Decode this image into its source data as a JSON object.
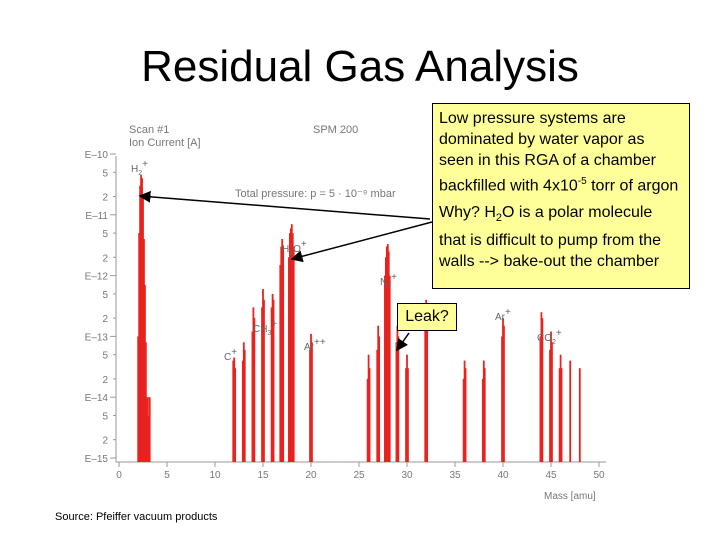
{
  "title": "Residual Gas Analysis",
  "note": {
    "p1_pre": "Low pressure systems are dominated by water vapor as seen in this RGA of a chamber backfilled with 4x10",
    "p1_exp": "-5",
    "p1_post": " torr of argon",
    "p2_pre": "Why? H",
    "p2_sub": "2",
    "p2_post": "O is a polar molecule that is difficult to pump from the walls --> bake-out the chamber"
  },
  "leak_label": "Leak?",
  "source": "Source: Pfeiffer vacuum products",
  "chart_data": {
    "type": "bar",
    "header_left_1": "Scan #1",
    "header_left_2": "Ion Current [A]",
    "header_right": "SPM 200",
    "total_pressure_label": "Total  pressure: p = 5 · 10⁻⁹ mbar",
    "xlabel": "Mass [amu]",
    "xlim": [
      0,
      50
    ],
    "x_ticks": [
      "0",
      "5",
      "10",
      "15",
      "20",
      "25",
      "30",
      "35",
      "40",
      "45",
      "50"
    ],
    "y_log_range": [
      -15,
      -10
    ],
    "y_ticks": [
      "E–10",
      "5",
      "2",
      "E–11",
      "5",
      "2",
      "E–12",
      "5",
      "2",
      "E–13",
      "5",
      "2",
      "E–14",
      "5",
      "2",
      "E–15"
    ],
    "bar_color": "#e8231f",
    "peak_labels": [
      "H2+",
      "H2O+",
      "N2+",
      "CH3+",
      "C+",
      "Ar++",
      "Ar+",
      "CO2+"
    ],
    "bars": [
      {
        "x": 2.0,
        "y": 1e-13
      },
      {
        "x": 2.1,
        "y": 5e-12
      },
      {
        "x": 2.2,
        "y": 3e-11
      },
      {
        "x": 2.3,
        "y": 4.5e-11
      },
      {
        "x": 2.4,
        "y": 4e-11
      },
      {
        "x": 2.5,
        "y": 2e-11
      },
      {
        "x": 2.6,
        "y": 4e-12
      },
      {
        "x": 2.7,
        "y": 7e-13
      },
      {
        "x": 2.8,
        "y": 8e-14
      },
      {
        "x": 2.9,
        "y": 1e-14
      },
      {
        "x": 3.0,
        "y": 1e-14
      },
      {
        "x": 3.1,
        "y": 5e-15
      },
      {
        "x": 3.2,
        "y": 1e-14
      },
      {
        "x": 11.9,
        "y": 4e-14
      },
      {
        "x": 12.0,
        "y": 4.5e-14
      },
      {
        "x": 12.1,
        "y": 3e-14
      },
      {
        "x": 12.9,
        "y": 4e-14
      },
      {
        "x": 13.0,
        "y": 8e-14
      },
      {
        "x": 13.1,
        "y": 6e-14
      },
      {
        "x": 13.9,
        "y": 1.2e-13
      },
      {
        "x": 14.0,
        "y": 3e-13
      },
      {
        "x": 14.1,
        "y": 2e-13
      },
      {
        "x": 14.9,
        "y": 3e-13
      },
      {
        "x": 15.0,
        "y": 6e-13
      },
      {
        "x": 15.1,
        "y": 4e-13
      },
      {
        "x": 15.9,
        "y": 3e-13
      },
      {
        "x": 16.0,
        "y": 5e-13
      },
      {
        "x": 16.1,
        "y": 4e-13
      },
      {
        "x": 16.8,
        "y": 1.5e-12
      },
      {
        "x": 16.9,
        "y": 3e-12
      },
      {
        "x": 17.0,
        "y": 4e-12
      },
      {
        "x": 17.1,
        "y": 3e-12
      },
      {
        "x": 17.7,
        "y": 2e-12
      },
      {
        "x": 17.8,
        "y": 5e-12
      },
      {
        "x": 17.9,
        "y": 6e-12
      },
      {
        "x": 18.0,
        "y": 7e-12
      },
      {
        "x": 18.1,
        "y": 5e-12
      },
      {
        "x": 18.2,
        "y": 3e-12
      },
      {
        "x": 19.9,
        "y": 6e-14
      },
      {
        "x": 20.0,
        "y": 1.1e-13
      },
      {
        "x": 20.1,
        "y": 8e-14
      },
      {
        "x": 25.9,
        "y": 2e-14
      },
      {
        "x": 26.0,
        "y": 5e-14
      },
      {
        "x": 26.1,
        "y": 3e-14
      },
      {
        "x": 26.9,
        "y": 6e-14
      },
      {
        "x": 27.0,
        "y": 1.5e-13
      },
      {
        "x": 27.1,
        "y": 1e-13
      },
      {
        "x": 27.7,
        "y": 1e-12
      },
      {
        "x": 27.8,
        "y": 2e-12
      },
      {
        "x": 27.9,
        "y": 3e-12
      },
      {
        "x": 28.0,
        "y": 3.3e-12
      },
      {
        "x": 28.1,
        "y": 2.5e-12
      },
      {
        "x": 28.2,
        "y": 1e-12
      },
      {
        "x": 28.9,
        "y": 8e-14
      },
      {
        "x": 29.0,
        "y": 1.5e-13
      },
      {
        "x": 29.1,
        "y": 1e-13
      },
      {
        "x": 29.9,
        "y": 3e-14
      },
      {
        "x": 30.0,
        "y": 5e-14
      },
      {
        "x": 30.1,
        "y": 3e-14
      },
      {
        "x": 31.9,
        "y": 2e-13
      },
      {
        "x": 32.0,
        "y": 4e-13
      },
      {
        "x": 32.1,
        "y": 3e-13
      },
      {
        "x": 35.9,
        "y": 2e-14
      },
      {
        "x": 36.0,
        "y": 4e-14
      },
      {
        "x": 36.1,
        "y": 3e-14
      },
      {
        "x": 37.9,
        "y": 2e-14
      },
      {
        "x": 38.0,
        "y": 4e-14
      },
      {
        "x": 38.1,
        "y": 3e-14
      },
      {
        "x": 39.9,
        "y": 1e-13
      },
      {
        "x": 40.0,
        "y": 2e-13
      },
      {
        "x": 40.1,
        "y": 1.5e-13
      },
      {
        "x": 43.9,
        "y": 1e-13
      },
      {
        "x": 44.0,
        "y": 2.5e-13
      },
      {
        "x": 44.1,
        "y": 2e-13
      },
      {
        "x": 44.9,
        "y": 6e-14
      },
      {
        "x": 45.0,
        "y": 1.2e-13
      },
      {
        "x": 45.1,
        "y": 8e-14
      },
      {
        "x": 45.9,
        "y": 3e-14
      },
      {
        "x": 46.0,
        "y": 5e-14
      },
      {
        "x": 46.1,
        "y": 3e-14
      },
      {
        "x": 47.0,
        "y": 4e-14
      },
      {
        "x": 48.0,
        "y": 3e-14
      }
    ]
  }
}
